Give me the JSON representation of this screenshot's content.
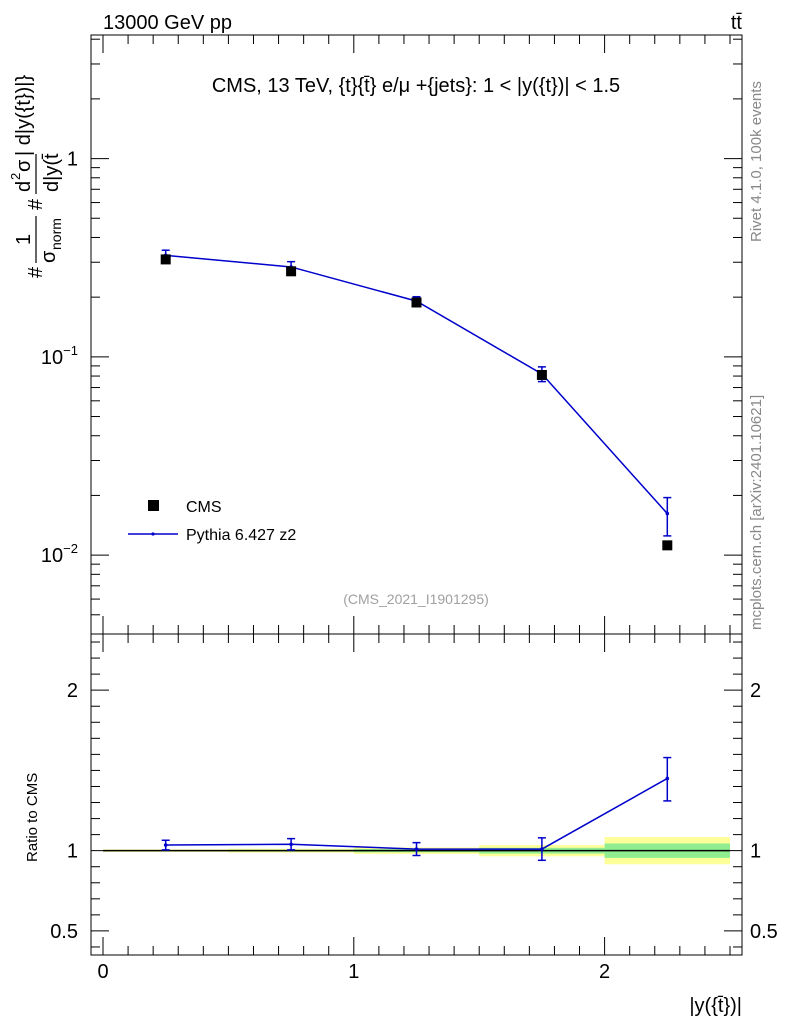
{
  "header": {
    "energy_label": "13000 GeV pp",
    "process_label": "tt̄"
  },
  "side_labels": {
    "rivet": "Rivet 4.1.0,  100k events",
    "mcplots": "mcplots.cern.ch [arXiv:2401.10621]"
  },
  "chart_data": [
    {
      "type": "scatter",
      "title": "CMS, 13 TeV, {t}{t̄} e/μ +{jets}: 1 < |y({t})| < 1.5",
      "analysis_id": "(CMS_2021_I1901295)",
      "ylabel": "#1/σnorm #d²σ/d|y(t̄)| d|y({t})|}",
      "ylabel_parts": {
        "hash1": "#",
        "one": "1",
        "sigma": "σ",
        "norm": "norm",
        "hash2": "#",
        "d": "d",
        "two": "2",
        "sigma2": "σ",
        "bar_expr": "| d|y({t})|}",
        "denom": "d|y(t̄"
      },
      "yscale": "log",
      "ylim": [
        0.004,
        4.2
      ],
      "y_ticks": [
        {
          "value": 1,
          "base": "1",
          "exp": ""
        },
        {
          "value": 0.1,
          "base": "10",
          "exp": "−1"
        },
        {
          "value": 0.01,
          "base": "10",
          "exp": "−2"
        }
      ],
      "xlim": [
        0,
        2.5
      ],
      "x_bins": [
        [
          0,
          0.5
        ],
        [
          0.5,
          1.0
        ],
        [
          1.0,
          1.5
        ],
        [
          1.5,
          2.0
        ],
        [
          2.0,
          2.5
        ]
      ],
      "series": [
        {
          "name": "CMS",
          "x": [
            0.25,
            0.75,
            1.25,
            1.75,
            2.25
          ],
          "values": [
            0.31,
            0.27,
            0.188,
            0.081,
            0.0112
          ],
          "color": "#000000"
        },
        {
          "name": "Pythia 6.427 z2",
          "x": [
            0.25,
            0.75,
            1.25,
            1.75,
            2.25
          ],
          "values": [
            0.325,
            0.284,
            0.191,
            0.082,
            0.0162
          ],
          "err_low": [
            0.02,
            0.018,
            0.01,
            0.007,
            0.0037
          ],
          "err_high": [
            0.02,
            0.018,
            0.01,
            0.007,
            0.0033
          ],
          "color": "#0000cc"
        }
      ],
      "legend_position": "lower-left"
    },
    {
      "type": "line",
      "ylabel": "Ratio to CMS",
      "ylim": [
        0.35,
        2.35
      ],
      "y_ticks": [
        {
          "value": 2,
          "label": "2"
        },
        {
          "value": 1,
          "label": "1"
        },
        {
          "value": 0.5,
          "label": "0.5"
        }
      ],
      "xlim": [
        0,
        2.5
      ],
      "x_ticks": [
        {
          "value": 0,
          "label": "0"
        },
        {
          "value": 1,
          "label": "1"
        },
        {
          "value": 2,
          "label": "2"
        }
      ],
      "xlabel": "|y({t̄})|",
      "bands": {
        "green_halfwidth": [
          0.004,
          0.006,
          0.01,
          0.018,
          0.045
        ],
        "yellow_halfwidth": [
          0.008,
          0.012,
          0.02,
          0.035,
          0.085
        ]
      },
      "series": [
        {
          "name": "Pythia 6.427 z2",
          "x": [
            0.25,
            0.75,
            1.25,
            1.75,
            2.25
          ],
          "values": [
            1.035,
            1.04,
            1.01,
            1.01,
            1.45
          ],
          "err_low": [
            0.03,
            0.035,
            0.04,
            0.07,
            0.14
          ],
          "err_high": [
            0.03,
            0.035,
            0.04,
            0.07,
            0.13
          ],
          "color": "#0000cc"
        }
      ]
    }
  ]
}
